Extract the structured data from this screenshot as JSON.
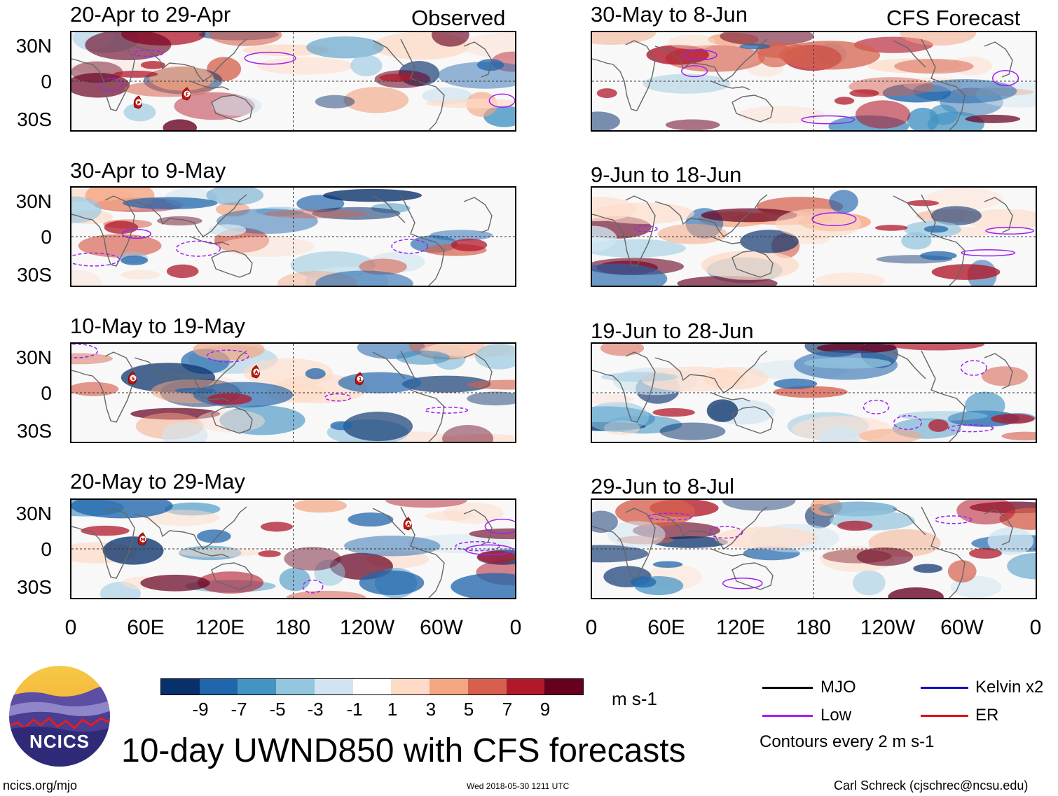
{
  "columns": {
    "left": "Observed",
    "right": "CFS Forecast"
  },
  "panels": [
    {
      "id": "p1",
      "period": "20-Apr to 29-Apr",
      "column": "left",
      "row": 0
    },
    {
      "id": "p2",
      "period": "30-Apr to 9-May",
      "column": "left",
      "row": 1
    },
    {
      "id": "p3",
      "period": "10-May to 19-May",
      "column": "left",
      "row": 2
    },
    {
      "id": "p4",
      "period": "20-May to 29-May",
      "column": "left",
      "row": 3
    },
    {
      "id": "p5",
      "period": "30-May to 8-Jun",
      "column": "right",
      "row": 0
    },
    {
      "id": "p6",
      "period": "9-Jun to 18-Jun",
      "column": "right",
      "row": 1
    },
    {
      "id": "p7",
      "period": "19-Jun to 28-Jun",
      "column": "right",
      "row": 2
    },
    {
      "id": "p8",
      "period": "29-Jun to 8-Jul",
      "column": "right",
      "row": 3
    }
  ],
  "lat_labels": [
    "30N",
    "0",
    "30S"
  ],
  "lon_labels": [
    "0",
    "60E",
    "120E",
    "180",
    "120W",
    "60W",
    "0"
  ],
  "storm_markers": [
    {
      "panel": "p1",
      "letter": "F"
    },
    {
      "panel": "p1",
      "letter": "F"
    },
    {
      "panel": "p3",
      "letter": "S"
    },
    {
      "panel": "p3",
      "letter": "A"
    },
    {
      "panel": "p3",
      "letter": "1"
    },
    {
      "panel": "p4",
      "letter": "M"
    },
    {
      "panel": "p4",
      "letter": "A"
    }
  ],
  "colorbar": {
    "colors": [
      "#08306b",
      "#2166ac",
      "#4393c3",
      "#92c5de",
      "#d1e5f0",
      "#ffffff",
      "#fddbc7",
      "#f4a582",
      "#d6604d",
      "#b2182b",
      "#67001f"
    ],
    "labels": [
      "-9",
      "-7",
      "-5",
      "-3",
      "-1",
      "1",
      "3",
      "5",
      "7",
      "9"
    ],
    "units": "m s-1"
  },
  "legend": {
    "mjo": {
      "label": "MJO",
      "color": "#000000"
    },
    "low": {
      "label": "Low",
      "color": "#a020f0"
    },
    "kelvin": {
      "label": "Kelvin x2",
      "color": "#1010c8"
    },
    "er": {
      "label": "ER",
      "color": "#e01010"
    },
    "contours_note": "Contours every 2 m s-1"
  },
  "title": "10-day UWND850 with CFS forecasts",
  "logo": {
    "text": "NCICS"
  },
  "footer": {
    "url": "ncics.org/mjo",
    "timestamp": "Wed 2018-05-30 1211 UTC",
    "credit": "Carl Schreck (cjschrec@ncsu.edu)"
  }
}
